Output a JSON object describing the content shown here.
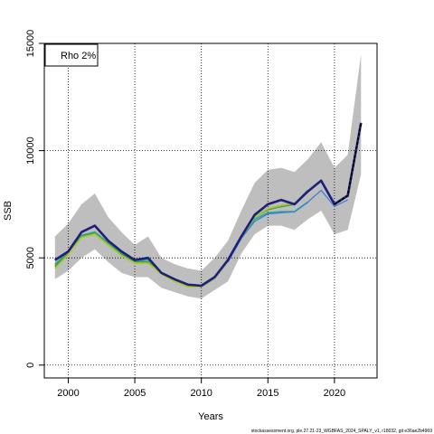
{
  "chart_data": {
    "type": "line",
    "xlabel": "Years",
    "ylabel": "SSB",
    "xlim": [
      1998.2,
      2023.2
    ],
    "ylim": [
      -600,
      15000
    ],
    "x_ticks": [
      2000,
      2005,
      2010,
      2015,
      2020
    ],
    "y_ticks": [
      0,
      5000,
      10000,
      15000
    ],
    "grid": true,
    "legend_placement": "top-left",
    "legend_text": "Rho 2%",
    "colors": {
      "band": "#bebebe",
      "base": "#1f1f7a",
      "peel1": "#2aa7a0",
      "peel2": "#4a9a3a",
      "peel3": "#a8c83a",
      "peel4": "#3a7fd0",
      "projection": "#000000",
      "grid": "#000000"
    },
    "band": {
      "x": [
        1999,
        2000,
        2001,
        2002,
        2003,
        2004,
        2005,
        2006,
        2007,
        2008,
        2009,
        2010,
        2011,
        2012,
        2013,
        2014,
        2015,
        2016,
        2017,
        2018,
        2019,
        2020,
        2021,
        2022
      ],
      "upper": [
        6000,
        6600,
        7500,
        8000,
        6900,
        6200,
        5600,
        6000,
        5000,
        4700,
        4500,
        4400,
        5000,
        5800,
        7200,
        8500,
        9100,
        9200,
        9000,
        9600,
        10400,
        9200,
        9800,
        14500
      ],
      "lower": [
        4000,
        4400,
        5000,
        5400,
        4800,
        4300,
        4100,
        4100,
        3600,
        3400,
        3200,
        3100,
        3500,
        3900,
        5200,
        6100,
        6500,
        6500,
        6300,
        6800,
        7200,
        6100,
        6300,
        8900
      ]
    },
    "series": [
      {
        "x": [
          1999,
          2000,
          2001,
          2002,
          2003,
          2004,
          2005,
          2006,
          2007,
          2008,
          2009,
          2010,
          2011,
          2012,
          2013,
          2014,
          2015,
          2016,
          2017,
          2018,
          2019,
          2020,
          2021,
          2022
        ],
        "values": [
          4900,
          5300,
          6200,
          6500,
          5800,
          5300,
          4900,
          5000,
          4300,
          4000,
          3750,
          3700,
          4100,
          4900,
          6000,
          7000,
          7500,
          7700,
          7500,
          8100,
          8600,
          7500,
          7900,
          11300
        ]
      },
      {
        "x": [
          1999,
          2000,
          2001,
          2002,
          2003,
          2004,
          2005,
          2006,
          2007,
          2008,
          2009,
          2010,
          2011,
          2012,
          2013,
          2014,
          2015,
          2016,
          2017,
          2018
        ],
        "values": [
          4700,
          5250,
          6050,
          6200,
          5700,
          5200,
          4850,
          4900,
          4300,
          3950,
          3700,
          3650,
          4050,
          4850,
          5950,
          6800,
          7100,
          7150,
          7150,
          7600
        ]
      },
      {
        "x": [
          1999,
          2000,
          2001,
          2002,
          2003,
          2004,
          2005,
          2006,
          2007,
          2008,
          2009,
          2010,
          2011,
          2012,
          2013,
          2014,
          2015,
          2016,
          2017,
          2018
        ],
        "values": [
          4600,
          5200,
          6000,
          6150,
          5650,
          5150,
          4800,
          4800,
          4300,
          3950,
          3700,
          3650,
          4050,
          4850,
          5950,
          6900,
          7250,
          7400,
          7500,
          8150
        ]
      },
      {
        "x": [
          1999,
          2000,
          2001,
          2002,
          2003,
          2004,
          2005,
          2006,
          2007,
          2008,
          2009,
          2010,
          2011,
          2012,
          2013,
          2014,
          2015,
          2016,
          2017
        ],
        "values": [
          4500,
          5150,
          5950,
          6100,
          5600,
          5100,
          4750,
          4750,
          4250,
          3900,
          3650,
          3650,
          4050,
          4850,
          5950,
          6900,
          7300,
          7450,
          7550
        ]
      },
      {
        "x": [
          2012,
          2013,
          2014,
          2015,
          2016,
          2017,
          2018,
          2019,
          2020,
          2021
        ],
        "values": [
          4800,
          5900,
          6700,
          7050,
          7100,
          7150,
          7600,
          8150,
          7400,
          7700
        ]
      }
    ],
    "projection": {
      "x": [
        2020,
        2021,
        2022
      ],
      "values": [
        7500,
        7900,
        11300
      ]
    }
  },
  "footer": "stockassessment.org, ple.27.21-23_WGBFAS_2024_SPALY_v1, r18032, git e36ae2b4969"
}
